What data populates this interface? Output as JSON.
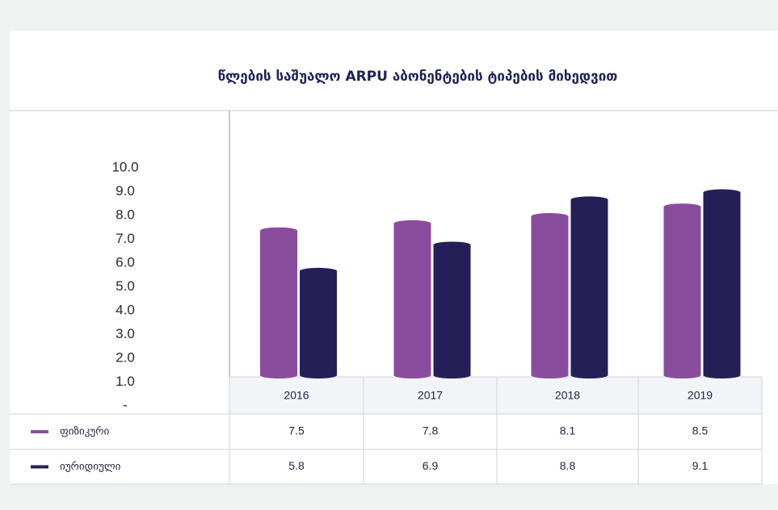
{
  "chart_data": {
    "type": "bar",
    "title": "წლების საშუალო ARPU აბონენტების ტიპების მიხედვით",
    "categories": [
      "2016",
      "2017",
      "2018",
      "2019"
    ],
    "series": [
      {
        "name": "ფიზიკური",
        "color": "#8a4d9e",
        "values": [
          7.5,
          7.8,
          8.1,
          8.5
        ]
      },
      {
        "name": "იურიდიული",
        "color": "#242057",
        "values": [
          5.8,
          6.9,
          8.8,
          9.1
        ]
      }
    ],
    "ylim": [
      0,
      10
    ],
    "yticks": [
      {
        "value": 0,
        "label": "-"
      },
      {
        "value": 1,
        "label": "1.0"
      },
      {
        "value": 2,
        "label": "2.0"
      },
      {
        "value": 3,
        "label": "3.0"
      },
      {
        "value": 4,
        "label": "4.0"
      },
      {
        "value": 5,
        "label": "5.0"
      },
      {
        "value": 6,
        "label": "6.0"
      },
      {
        "value": 7,
        "label": "7.0"
      },
      {
        "value": 8,
        "label": "8.0"
      },
      {
        "value": 9,
        "label": "9.0"
      },
      {
        "value": 10,
        "label": "10.0"
      }
    ]
  }
}
